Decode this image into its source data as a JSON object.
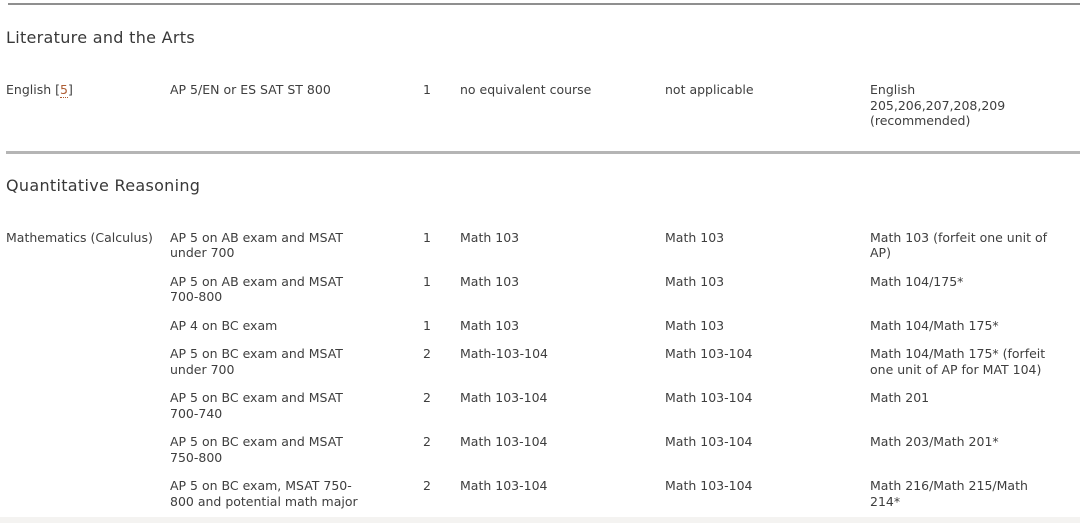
{
  "colors": {
    "footnote_link": "#ad5c33",
    "divider": "#b5b5b5",
    "top_rule": "#8f8f8f",
    "text": "#3e3e3e"
  },
  "sections": [
    {
      "title": "Literature and the Arts",
      "rows": [
        {
          "subject": "English",
          "footnote_open": "[",
          "footnote": "5",
          "footnote_close": "]",
          "exam": "AP 5/EN or ES SAT ST 800",
          "units": "1",
          "equivalent_course": "no equivalent course",
          "placement_course": "not applicable",
          "recommended_course": "English\n205,206,207,208,209\n(recommended)"
        }
      ]
    },
    {
      "title": "Quantitative Reasoning",
      "rows": [
        {
          "subject": "Mathematics (Calculus)",
          "exam": "AP 5 on AB exam and MSAT\nunder 700",
          "units": "1",
          "equivalent_course": "Math 103",
          "placement_course": "Math 103",
          "recommended_course": "Math 103 (forfeit one unit of\nAP)"
        },
        {
          "subject": "",
          "exam": "AP 5 on AB exam and MSAT\n700-800",
          "units": "1",
          "equivalent_course": "Math 103",
          "placement_course": "Math 103",
          "recommended_course": "Math 104/175*"
        },
        {
          "subject": "",
          "exam": "AP 4 on BC exam",
          "units": "1",
          "equivalent_course": "Math 103",
          "placement_course": "Math 103",
          "recommended_course": "Math 104/Math 175*"
        },
        {
          "subject": "",
          "exam": "AP 5 on BC exam and MSAT\nunder 700",
          "units": "2",
          "equivalent_course": "Math-103-104",
          "placement_course": "Math 103-104",
          "recommended_course": "Math 104/Math 175* (forfeit\none unit of AP for MAT 104)"
        },
        {
          "subject": "",
          "exam": "AP 5 on BC exam and MSAT\n700-740",
          "units": "2",
          "equivalent_course": "Math 103-104",
          "placement_course": "Math 103-104",
          "recommended_course": "Math 201"
        },
        {
          "subject": "",
          "exam": "AP 5 on BC exam and MSAT\n750-800",
          "units": "2",
          "equivalent_course": "Math 103-104",
          "placement_course": "Math 103-104",
          "recommended_course": "Math 203/Math 201*"
        },
        {
          "subject": "",
          "exam": "AP 5 on BC exam, MSAT 750-\n800 and potential math major",
          "units": "2",
          "equivalent_course": "Math 103-104",
          "placement_course": "Math 103-104",
          "recommended_course": "Math 216/Math 215/Math\n214*"
        }
      ]
    }
  ]
}
